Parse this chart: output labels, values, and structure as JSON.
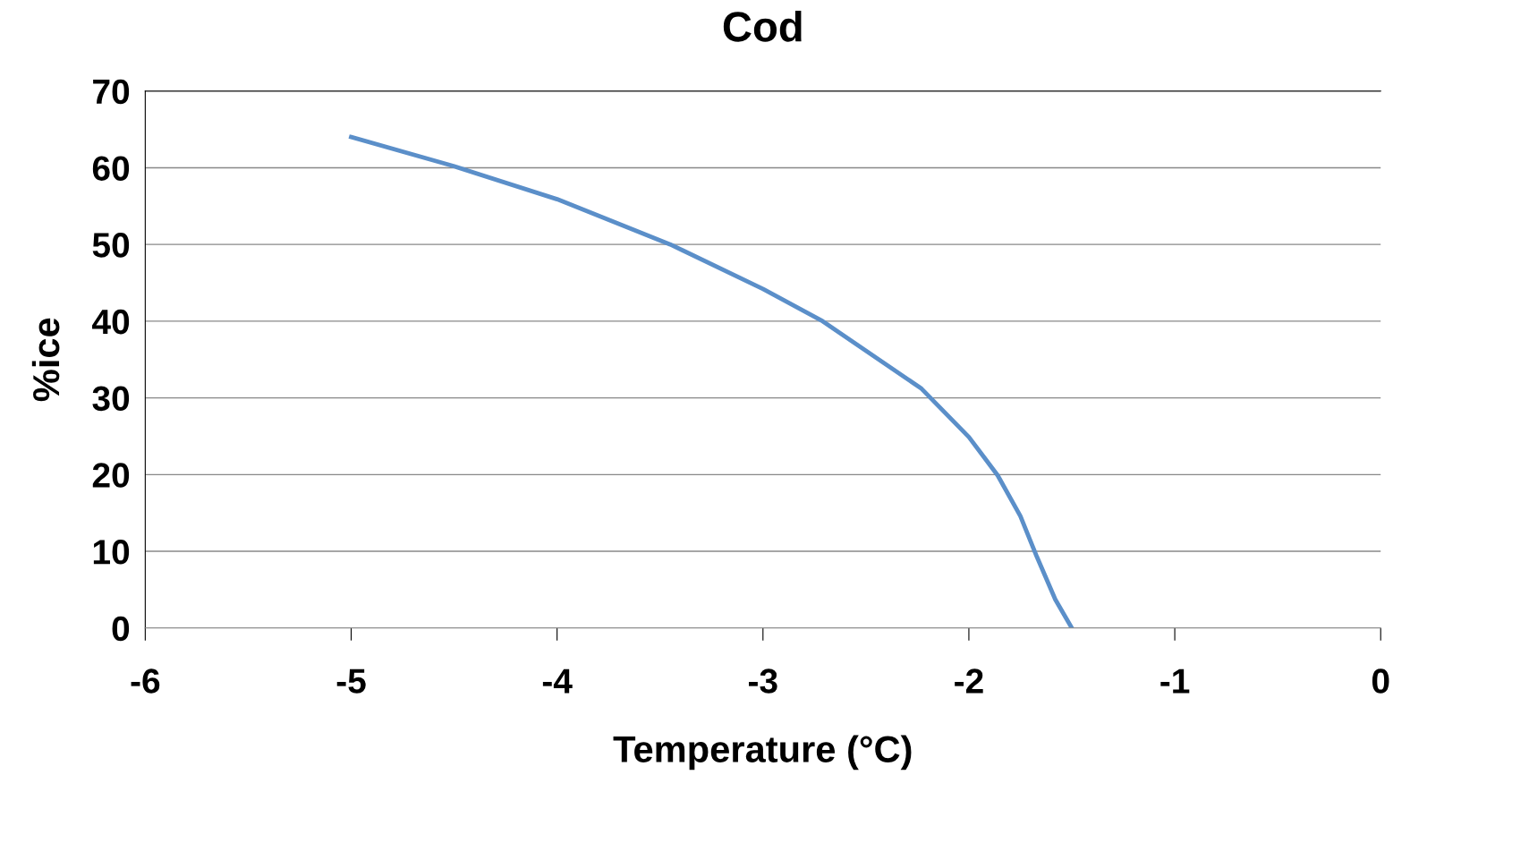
{
  "chart_data": {
    "type": "line",
    "title": "Cod",
    "xlabel": "Temperature (°C)",
    "ylabel": "%ice",
    "series": [
      {
        "color": "#5b8fc9",
        "x": [
          -5,
          -4.5,
          -4.0,
          -3.45,
          -3.0,
          -2.71,
          -2.23,
          -2.0,
          -1.86,
          -1.75,
          -1.67,
          -1.58,
          -1.5
        ],
        "values": [
          64,
          60.2,
          55.9,
          50,
          44.2,
          40,
          31.2,
          24.9,
          19.9,
          14.6,
          9.3,
          3.7,
          0
        ]
      }
    ],
    "xlim": [
      -6,
      0
    ],
    "xticks": [
      -6,
      -5,
      -4,
      -3,
      -2,
      -1,
      0
    ],
    "ylim": [
      0,
      70
    ],
    "yticks": [
      0,
      10,
      20,
      30,
      40,
      50,
      60,
      70
    ],
    "grid": "y",
    "legend": false,
    "marker": "none",
    "line_style": "solid"
  }
}
